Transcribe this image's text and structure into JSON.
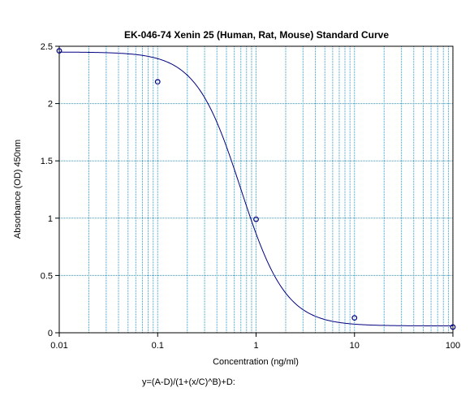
{
  "chart_data": {
    "type": "scatter",
    "title": "EK-046-74 Xenin 25 (Human, Rat, Mouse) Standard Curve",
    "xlabel": "Concentration (ng/ml)",
    "ylabel": "Absorbance (OD) 450nm",
    "x_scale": "log",
    "xlim": [
      0.01,
      100
    ],
    "ylim": [
      0,
      2.5
    ],
    "x_ticks": [
      0.01,
      0.1,
      1,
      10,
      100
    ],
    "x_tick_labels": [
      "0.01",
      "0.1",
      "1",
      "10",
      "100"
    ],
    "y_ticks": [
      0,
      0.5,
      1,
      1.5,
      2,
      2.5
    ],
    "y_tick_labels": [
      "0",
      "0.5",
      "1",
      "1.5",
      "2",
      "2.5"
    ],
    "grid": true,
    "points": {
      "x": [
        0.01,
        0.1,
        1,
        10,
        100
      ],
      "y": [
        2.46,
        2.19,
        0.99,
        0.13,
        0.05
      ]
    },
    "fit": {
      "model": "4PL",
      "A": 2.45,
      "B": 1.9,
      "C": 0.7,
      "D": 0.06
    },
    "colors": {
      "grid": "#3399cc",
      "curve": "#000080",
      "points": "#000080"
    },
    "formula": "y=(A-D)/(1+(x/C)^B)+D:"
  }
}
